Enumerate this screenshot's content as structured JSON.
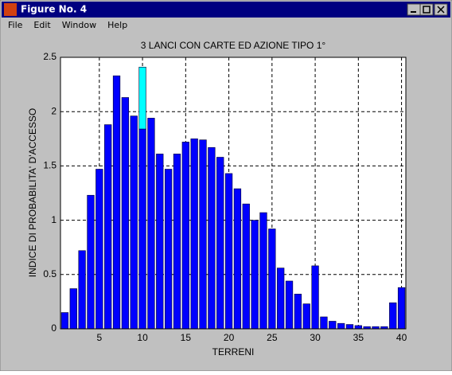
{
  "window": {
    "title": "Figure No. 4",
    "menu": [
      "File",
      "Edit",
      "Window",
      "Help"
    ]
  },
  "chart_data": {
    "type": "bar",
    "title": "3 LANCI  CON  CARTE ED AZIONE TIPO 1°",
    "xlabel": "TERRENI",
    "ylabel": "INDICE DI PROBABILITA' D'ACCESSO",
    "x": [
      1,
      2,
      3,
      4,
      5,
      6,
      7,
      8,
      9,
      10,
      11,
      12,
      13,
      14,
      15,
      16,
      17,
      18,
      19,
      20,
      21,
      22,
      23,
      24,
      25,
      26,
      27,
      28,
      29,
      30,
      31,
      32,
      33,
      34,
      35,
      36,
      37,
      38,
      39,
      40
    ],
    "stacked": true,
    "series": [
      {
        "color": "#0000ff",
        "values": [
          0.15,
          0.37,
          0.72,
          1.23,
          1.47,
          1.88,
          2.33,
          2.13,
          1.96,
          1.84,
          1.94,
          1.61,
          1.47,
          1.61,
          1.72,
          1.75,
          1.74,
          1.67,
          1.58,
          1.43,
          1.29,
          1.15,
          1.0,
          1.07,
          0.92,
          0.56,
          0.44,
          0.32,
          0.23,
          0.58,
          0.11,
          0.07,
          0.05,
          0.04,
          0.03,
          0.02,
          0.02,
          0.02,
          0.24,
          0.38
        ]
      },
      {
        "color": "#00ffff",
        "values": [
          null,
          null,
          null,
          null,
          null,
          null,
          null,
          null,
          null,
          0.57,
          null,
          null,
          null,
          null,
          null,
          null,
          null,
          null,
          null,
          null,
          null,
          null,
          null,
          null,
          null,
          null,
          null,
          null,
          null,
          null,
          null,
          null,
          null,
          null,
          null,
          null,
          null,
          null,
          null,
          null
        ]
      }
    ],
    "xlim": [
      0.5,
      40.5
    ],
    "xticks": [
      5,
      10,
      15,
      20,
      25,
      30,
      35,
      40
    ],
    "ylim": [
      0,
      2.5
    ],
    "yticks": [
      0,
      0.5,
      1,
      1.5,
      2,
      2.5
    ],
    "grid": true
  }
}
